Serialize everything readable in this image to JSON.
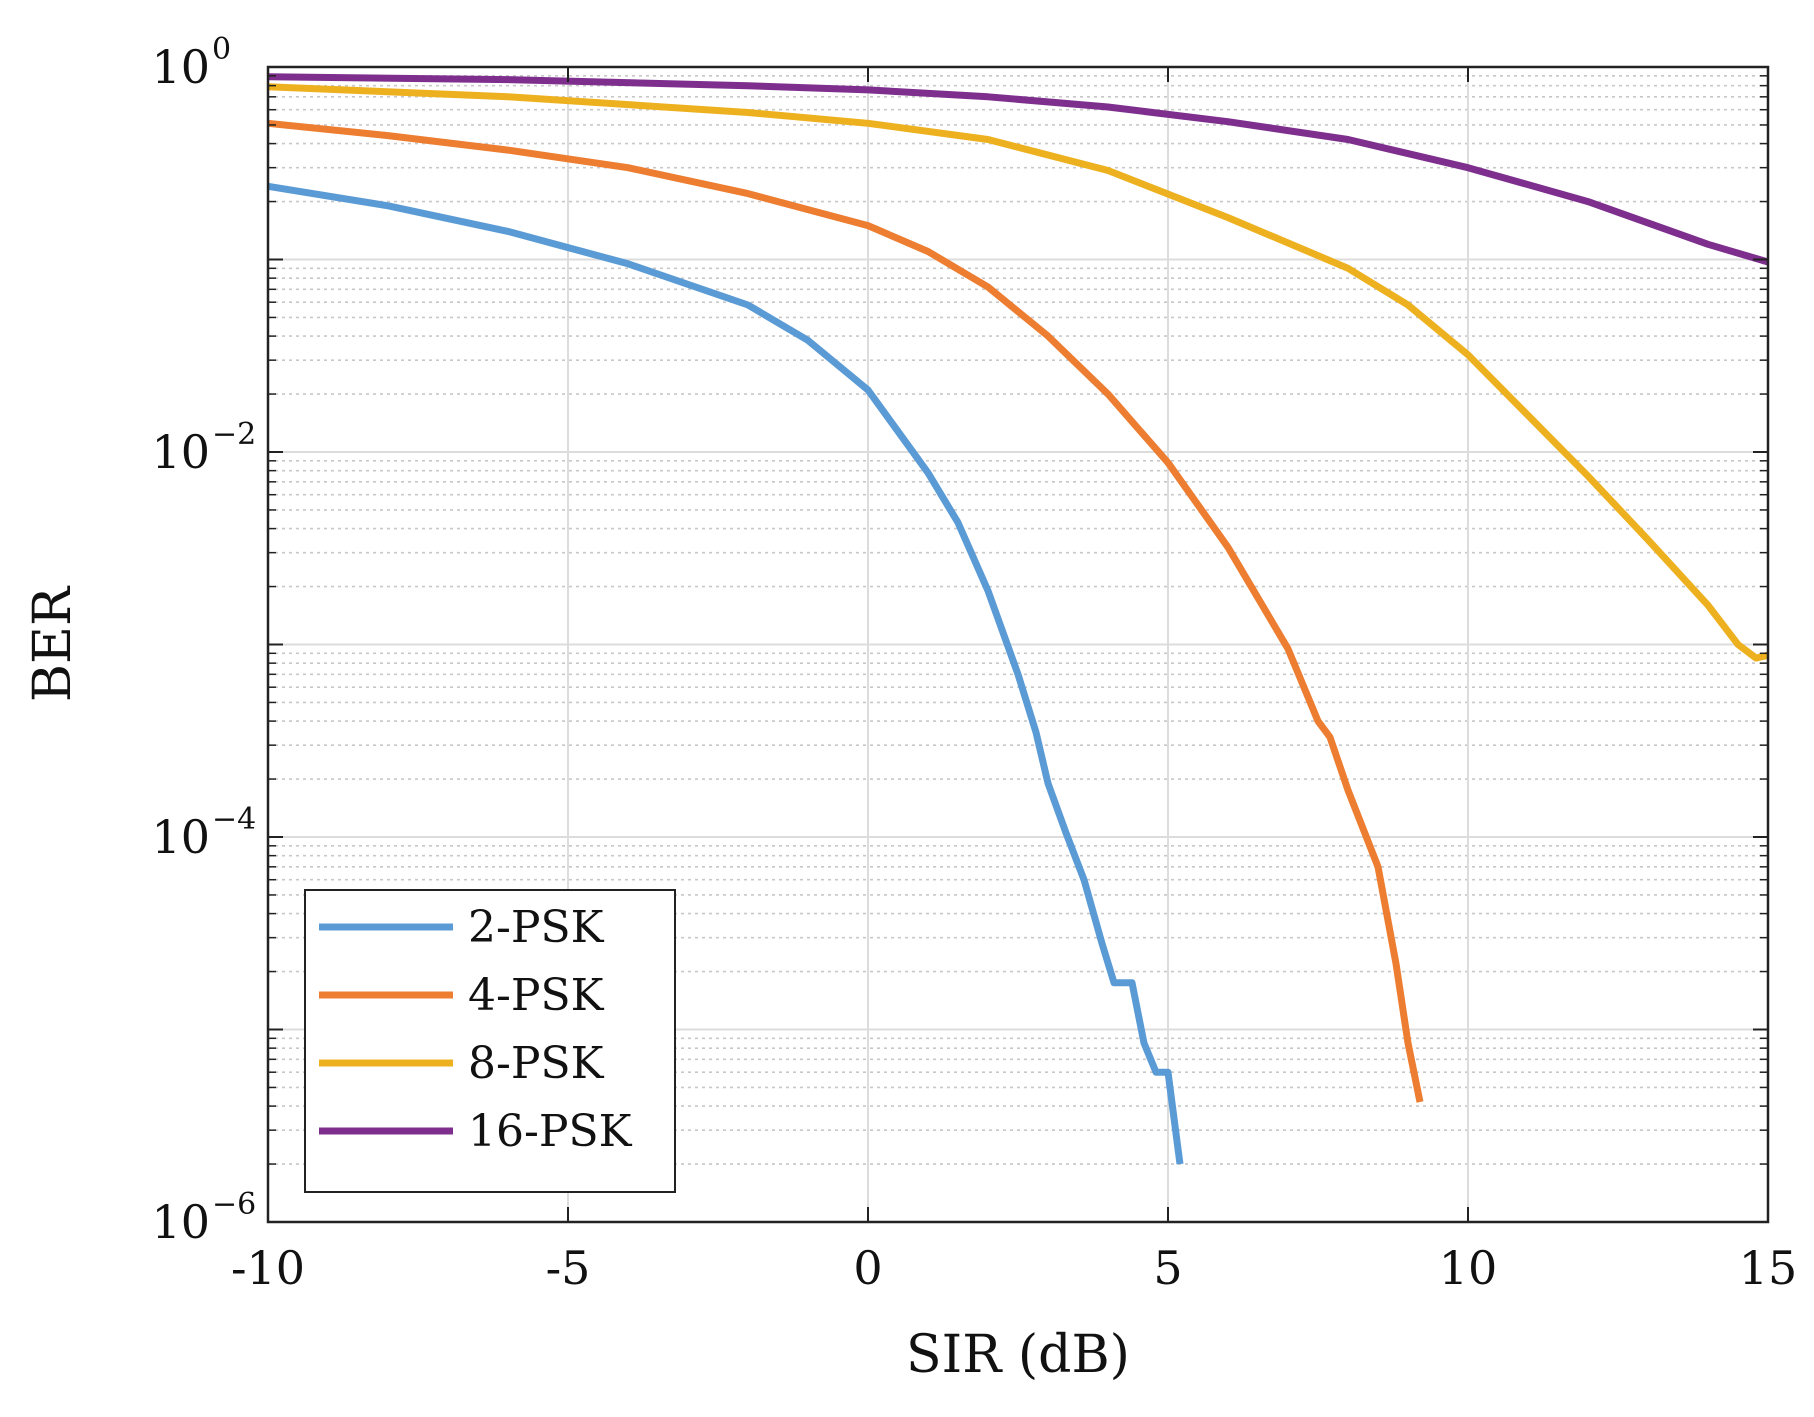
{
  "chart_data": {
    "type": "line",
    "title": "",
    "xlabel": "SIR (dB)",
    "ylabel": "BER",
    "xscale": "linear",
    "yscale": "log",
    "xlim": [
      -10,
      15
    ],
    "ylim": [
      1e-06,
      1
    ],
    "grid": true,
    "minor_grid": true,
    "legend_position": "bottom-left",
    "xticks": [
      -10,
      -5,
      0,
      5,
      10,
      15
    ],
    "xtick_labels": [
      "-10",
      "-5",
      "0",
      "5",
      "10",
      "15"
    ],
    "yticks": [
      {
        "value": 1e-06,
        "base": "10",
        "exp": "−6"
      },
      {
        "value": 0.0001,
        "base": "10",
        "exp": "−4"
      },
      {
        "value": 0.01,
        "base": "10",
        "exp": "−2"
      },
      {
        "value": 1,
        "base": "10",
        "exp": "0"
      }
    ],
    "series": [
      {
        "name": "2-PSK",
        "color": "#5b9bd5",
        "points": [
          [
            -10,
            0.24
          ],
          [
            -8,
            0.19
          ],
          [
            -6,
            0.14
          ],
          [
            -4,
            0.095
          ],
          [
            -2,
            0.058
          ],
          [
            -1,
            0.038
          ],
          [
            0,
            0.021
          ],
          [
            1,
            0.0078
          ],
          [
            1.5,
            0.0043
          ],
          [
            2,
            0.0019
          ],
          [
            2.5,
            0.0007
          ],
          [
            2.8,
            0.00035
          ],
          [
            3.0,
            0.00019
          ],
          [
            3.3,
            0.000105
          ],
          [
            3.6,
            6e-05
          ],
          [
            3.9,
            2.8e-05
          ],
          [
            4.1,
            1.75e-05
          ],
          [
            4.4,
            1.75e-05
          ],
          [
            4.6,
            8.5e-06
          ],
          [
            4.8,
            6e-06
          ],
          [
            5.0,
            6e-06
          ],
          [
            5.2,
            2e-06
          ]
        ]
      },
      {
        "name": "4-PSK",
        "color": "#ed7d31",
        "points": [
          [
            -10,
            0.51
          ],
          [
            -8,
            0.44
          ],
          [
            -6,
            0.37
          ],
          [
            -4,
            0.3
          ],
          [
            -2,
            0.22
          ],
          [
            0,
            0.15
          ],
          [
            1,
            0.11
          ],
          [
            2,
            0.072
          ],
          [
            3,
            0.04
          ],
          [
            4,
            0.02
          ],
          [
            5,
            0.0088
          ],
          [
            6,
            0.0032
          ],
          [
            7,
            0.00095
          ],
          [
            7.5,
            0.0004
          ],
          [
            7.7,
            0.00033
          ],
          [
            8.0,
            0.000175
          ],
          [
            8.5,
            7e-05
          ],
          [
            8.8,
            2.2e-05
          ],
          [
            9.0,
            8.5e-06
          ],
          [
            9.2,
            4.2e-06
          ]
        ]
      },
      {
        "name": "8-PSK",
        "color": "#edb120",
        "points": [
          [
            -10,
            0.79
          ],
          [
            -6,
            0.7
          ],
          [
            -2,
            0.58
          ],
          [
            0,
            0.51
          ],
          [
            2,
            0.42
          ],
          [
            4,
            0.29
          ],
          [
            6,
            0.165
          ],
          [
            8,
            0.09
          ],
          [
            9,
            0.058
          ],
          [
            10,
            0.032
          ],
          [
            11,
            0.0155
          ],
          [
            12,
            0.0075
          ],
          [
            13,
            0.0035
          ],
          [
            14,
            0.0016
          ],
          [
            14.5,
            0.001
          ],
          [
            14.8,
            0.00085
          ],
          [
            15,
            0.00088
          ]
        ]
      },
      {
        "name": "16-PSK",
        "color": "#7e2f8e",
        "points": [
          [
            -10,
            0.89
          ],
          [
            -6,
            0.86
          ],
          [
            -2,
            0.8
          ],
          [
            0,
            0.76
          ],
          [
            2,
            0.7
          ],
          [
            4,
            0.62
          ],
          [
            6,
            0.52
          ],
          [
            8,
            0.42
          ],
          [
            10,
            0.3
          ],
          [
            12,
            0.2
          ],
          [
            14,
            0.12
          ],
          [
            15,
            0.097
          ]
        ]
      }
    ]
  }
}
